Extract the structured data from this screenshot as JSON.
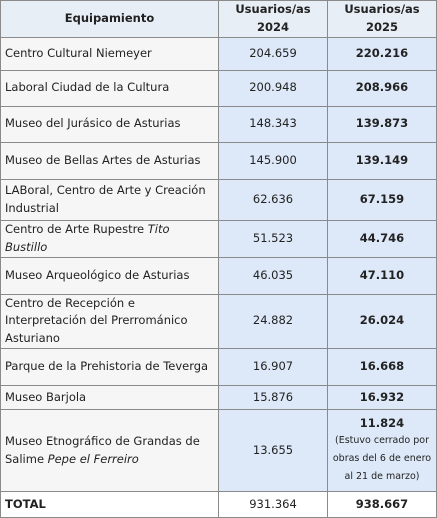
{
  "table": {
    "header": [
      "Equipamiento",
      "Usuarios/as 2024",
      "Usuarios/as 2025"
    ],
    "rows": [
      {
        "name": "Centro Cultural Niemeyer",
        "v2024": "204.659",
        "v2025": "220.216"
      },
      {
        "name": "Laboral Ciudad de la Cultura",
        "v2024": "200.948",
        "v2025": "208.966"
      },
      {
        "name": "Museo del Jurásico de Asturias",
        "v2024": "148.343",
        "v2025": "139.873"
      },
      {
        "name": "Museo de Bellas Artes de Asturias",
        "v2024": "145.900",
        "v2025": "139.149"
      },
      {
        "name": "LABoral, Centro de Arte y Creación Industrial",
        "v2024": "62.636",
        "v2025": "67.159"
      },
      {
        "name": "Centro de Arte Rupestre",
        "name_italic": "Tito Bustillo",
        "v2024": "51.523",
        "v2025": "44.746"
      },
      {
        "name": "Museo Arqueológico de Asturias",
        "v2024": "46.035",
        "v2025": "47.110"
      },
      {
        "name": "Centro de Recepción e Interpretación del Prerrománico Asturiano",
        "v2024": "24.882",
        "v2025": "26.024"
      },
      {
        "name": "Parque de la Prehistoria de Teverga",
        "v2024": "16.907",
        "v2025": "16.668"
      },
      {
        "name": "Museo Barjola",
        "v2024": "15.876",
        "v2025": "16.932"
      },
      {
        "name": "Museo Etnográfico de Grandas de Salime",
        "name_italic": "Pepe el Ferreiro",
        "v2024": "13.655",
        "v2025": "11.824",
        "note": "(Estuvo cerrado por obras del 6 de enero al 21 de marzo)"
      }
    ],
    "total": {
      "name": "TOTAL",
      "v2024": "931.364",
      "v2025": "938.667"
    }
  }
}
